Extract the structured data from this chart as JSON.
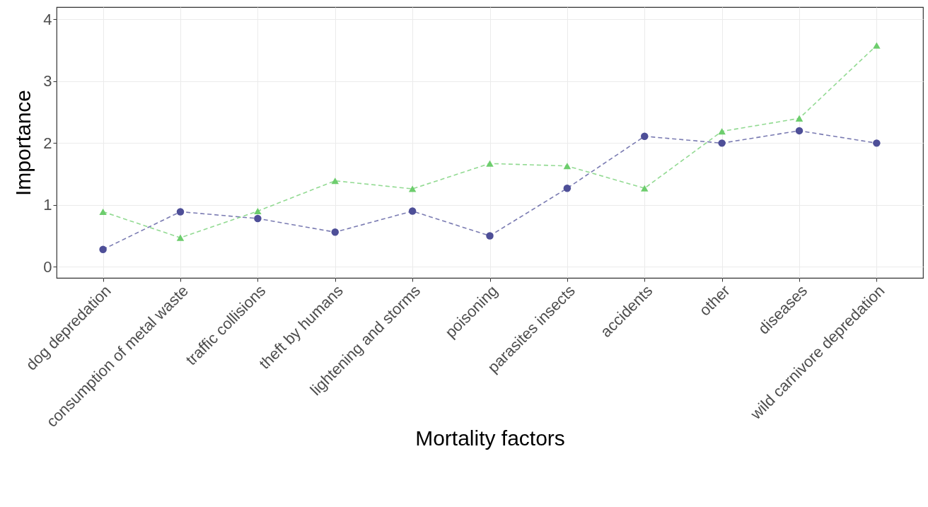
{
  "chart_data": {
    "type": "line",
    "xlabel": "Mortality factors",
    "ylabel": "Importance",
    "categories": [
      "dog depredation",
      "consumption of metal waste",
      "traffic collisions",
      "theft by humans",
      "lightening and storms",
      "poisoning",
      "parasites insects",
      "accidents",
      "other",
      "diseases",
      "wild carnivore depredation"
    ],
    "series": [
      {
        "color": "#4e4f98",
        "marker": "circle",
        "values": [
          0.28,
          0.89,
          0.78,
          0.56,
          0.9,
          0.5,
          1.27,
          2.11,
          2.0,
          2.2,
          2.0
        ]
      },
      {
        "color": "#6dcd6d",
        "marker": "triangle",
        "values": [
          0.89,
          0.47,
          0.9,
          1.39,
          1.26,
          1.67,
          1.63,
          1.27,
          2.19,
          2.4,
          3.58
        ]
      }
    ],
    "ylim": [
      -0.18,
      4.2
    ],
    "yticks": [
      0,
      1,
      2,
      3,
      4
    ],
    "grid": true,
    "line_style": "dashed"
  }
}
